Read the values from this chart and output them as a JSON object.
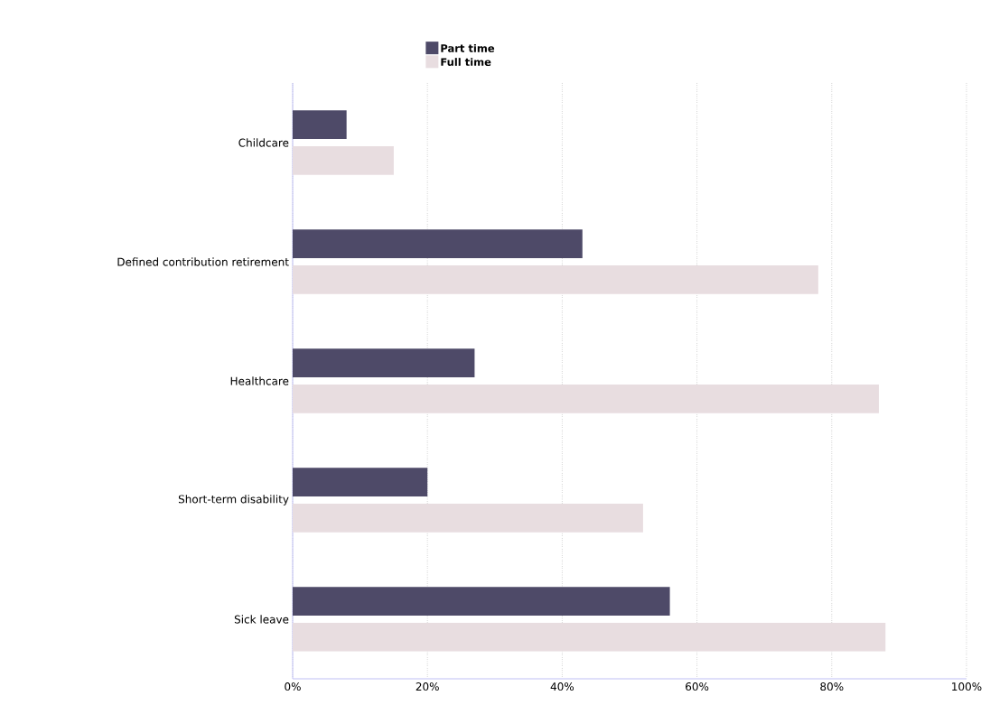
{
  "chart_data": {
    "type": "bar",
    "orientation": "horizontal",
    "categories": [
      "Childcare",
      "Defined contribution retirement",
      "Healthcare",
      "Short-term disability",
      "Sick leave"
    ],
    "series": [
      {
        "name": "Part time",
        "color": "#4e4a68",
        "values": [
          8,
          43,
          27,
          20,
          56
        ]
      },
      {
        "name": "Full time",
        "color": "#e8dde0",
        "values": [
          15,
          78,
          87,
          52,
          88
        ]
      }
    ],
    "xlim": [
      0,
      100
    ],
    "xticks": [
      {
        "value": 0,
        "label": "0%"
      },
      {
        "value": 20,
        "label": "20%"
      },
      {
        "value": 40,
        "label": "40%"
      },
      {
        "value": 60,
        "label": "60%"
      },
      {
        "value": 80,
        "label": "80%"
      },
      {
        "value": 100,
        "label": "100%"
      }
    ],
    "grid": "x",
    "legend": "top"
  }
}
